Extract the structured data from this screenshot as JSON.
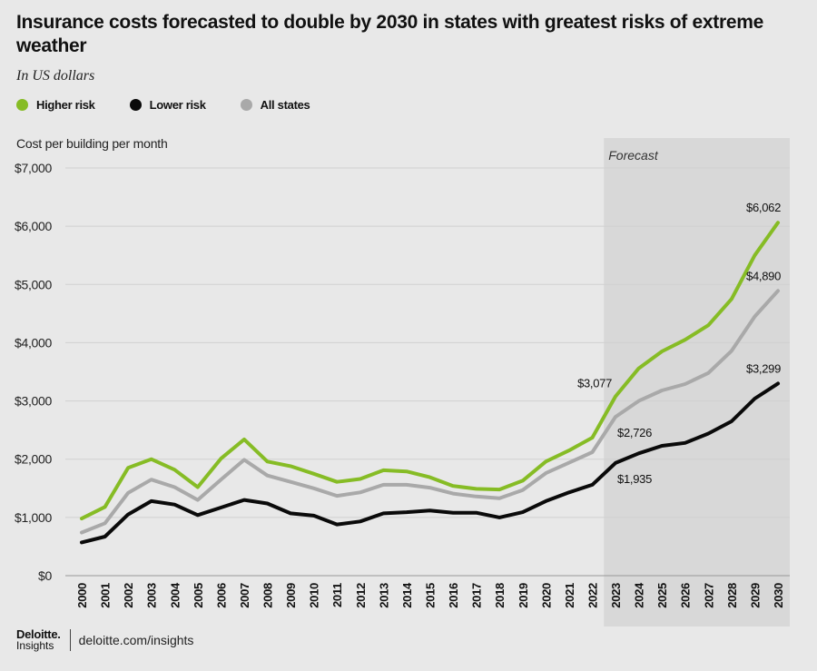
{
  "title": "Insurance costs forecasted to double by 2030 in states with greatest risks of extreme weather",
  "subtitle": "In US dollars",
  "legend": [
    {
      "label": "Higher risk",
      "color": "#86bc25"
    },
    {
      "label": "Lower risk",
      "color": "#0a0a0a"
    },
    {
      "label": "All states",
      "color": "#a9a9a9"
    }
  ],
  "footer": {
    "brand": "Deloitte.",
    "brand_sub": "Insights",
    "url": "deloitte.com/insights"
  },
  "chart_data": {
    "type": "line",
    "ylabel": "Cost per building per month",
    "ylim": [
      0,
      7000
    ],
    "yticks": [
      0,
      1000,
      2000,
      3000,
      4000,
      5000,
      6000,
      7000
    ],
    "ytick_labels": [
      "$0",
      "$1,000",
      "$2,000",
      "$3,000",
      "$4,000",
      "$5,000",
      "$6,000",
      "$7,000"
    ],
    "grid": true,
    "forecast_label": "Forecast",
    "forecast_range": [
      "2023",
      "2030"
    ],
    "categories": [
      "2000",
      "2001",
      "2002",
      "2003",
      "2004",
      "2005",
      "2006",
      "2007",
      "2008",
      "2009",
      "2010",
      "2011",
      "2012",
      "2013",
      "2014",
      "2015",
      "2016",
      "2017",
      "2018",
      "2019",
      "2020",
      "2021",
      "2022",
      "2023",
      "2024",
      "2025",
      "2026",
      "2027",
      "2028",
      "2029",
      "2030"
    ],
    "series": [
      {
        "name": "Higher risk",
        "color": "#86bc25",
        "values": [
          980,
          1180,
          1850,
          2000,
          1820,
          1520,
          2010,
          2340,
          1960,
          1880,
          1750,
          1610,
          1660,
          1810,
          1790,
          1690,
          1540,
          1490,
          1480,
          1630,
          1960,
          2150,
          2370,
          3077,
          3560,
          3850,
          4050,
          4300,
          4750,
          5500,
          6062
        ]
      },
      {
        "name": "All states",
        "color": "#a9a9a9",
        "values": [
          740,
          900,
          1420,
          1650,
          1520,
          1300,
          1650,
          1990,
          1720,
          1610,
          1500,
          1370,
          1430,
          1560,
          1560,
          1510,
          1410,
          1360,
          1330,
          1470,
          1760,
          1940,
          2120,
          2726,
          3000,
          3180,
          3290,
          3480,
          3860,
          4450,
          4890
        ]
      },
      {
        "name": "Lower risk",
        "color": "#0a0a0a",
        "values": [
          570,
          670,
          1050,
          1280,
          1220,
          1040,
          1170,
          1300,
          1240,
          1070,
          1030,
          880,
          930,
          1070,
          1090,
          1120,
          1080,
          1080,
          1000,
          1090,
          1280,
          1430,
          1560,
          1935,
          2100,
          2230,
          2280,
          2440,
          2650,
          3040,
          3299
        ]
      }
    ],
    "annotations": [
      {
        "text": "$3,077",
        "series": "Higher risk",
        "x": "2023",
        "y": 3077
      },
      {
        "text": "$2,726",
        "series": "All states",
        "x": "2023",
        "y": 2726
      },
      {
        "text": "$1,935",
        "series": "Lower risk",
        "x": "2023",
        "y": 1935
      },
      {
        "text": "$6,062",
        "series": "Higher risk",
        "x": "2030",
        "y": 6062
      },
      {
        "text": "$4,890",
        "series": "All states",
        "x": "2030",
        "y": 4890
      },
      {
        "text": "$3,299",
        "series": "Lower risk",
        "x": "2030",
        "y": 3299
      }
    ]
  }
}
